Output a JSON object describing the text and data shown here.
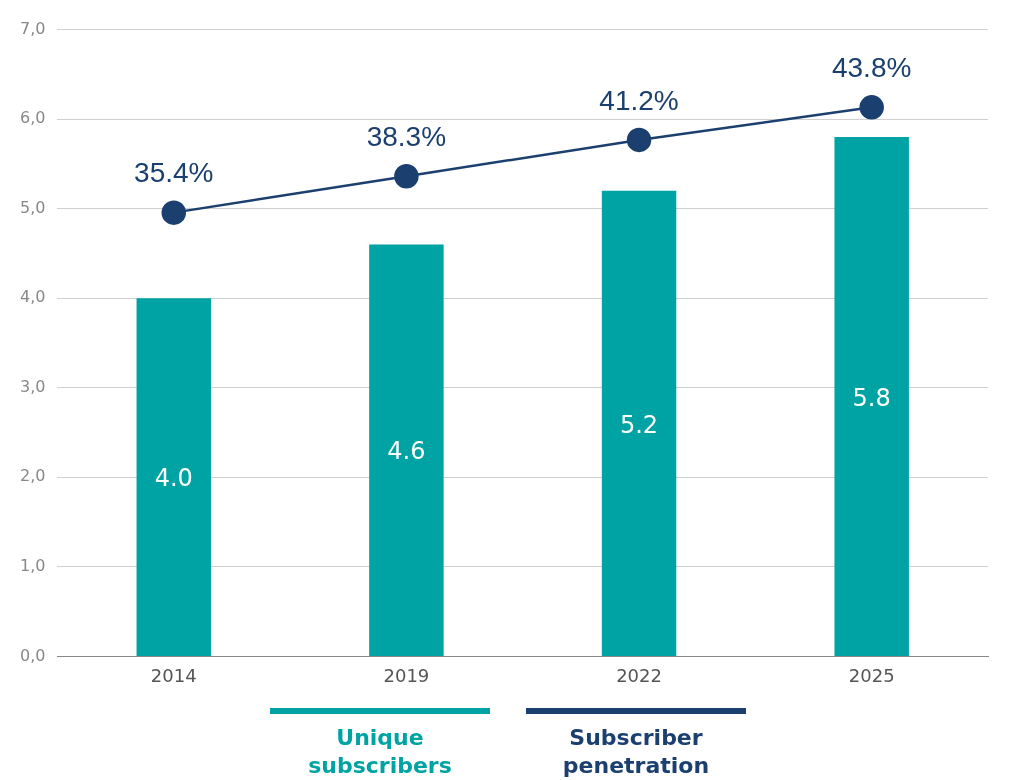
{
  "chart_data": {
    "type": "bar",
    "categories": [
      "2014",
      "2019",
      "2022",
      "2025"
    ],
    "series": [
      {
        "name": "Unique subscribers",
        "color": "#00a3a3",
        "values": [
          4.0,
          4.6,
          5.2,
          5.8
        ],
        "value_labels": [
          "4.0",
          "4.6",
          "5.2",
          "5.8"
        ]
      },
      {
        "name": "Subscriber penetration",
        "type": "line",
        "axis": "y2",
        "color": "#1b3f6e",
        "values": [
          35.4,
          38.3,
          41.2,
          43.8
        ],
        "value_labels": [
          "35.4%",
          "38.3%",
          "41.2%",
          "43.8%"
        ],
        "marker": "circle"
      }
    ],
    "ylim": [
      0,
      7
    ],
    "yticks": [
      {
        "value": 0,
        "label": "0,0"
      },
      {
        "value": 1,
        "label": "1,0"
      },
      {
        "value": 2,
        "label": "2,0"
      },
      {
        "value": 3,
        "label": "3,0"
      },
      {
        "value": 4,
        "label": "4,0"
      },
      {
        "value": 5,
        "label": "5,0"
      },
      {
        "value": 6,
        "label": "6,0"
      },
      {
        "value": 7,
        "label": "7,0"
      }
    ],
    "y2lim": [
      0,
      50
    ],
    "tick_labels": "xy",
    "grid": "y",
    "legend": "bottom"
  }
}
